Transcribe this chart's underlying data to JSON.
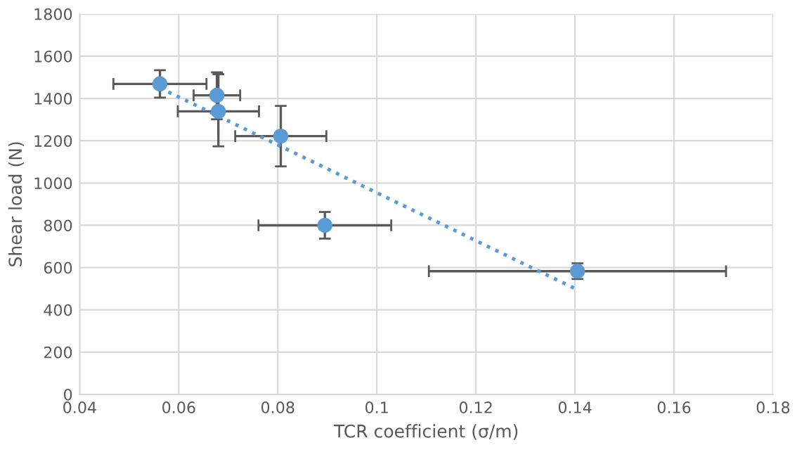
{
  "chart_data": {
    "type": "scatter",
    "xlabel": "TCR coefficient (σ/m)",
    "ylabel": "Shear load (N)",
    "xlim": [
      0.04,
      0.18
    ],
    "xticks": [
      0.04,
      0.06,
      0.08,
      0.1,
      0.12,
      0.14,
      0.16,
      0.18
    ],
    "ylim": [
      0,
      1800
    ],
    "yticks": [
      0,
      200,
      400,
      600,
      800,
      1000,
      1200,
      1400,
      1600,
      1800
    ],
    "grid": true,
    "legend": false,
    "series": [
      {
        "color": "#5b9bd5",
        "marker": "circle",
        "x": [
          0.0562,
          0.0677,
          0.068,
          0.0806,
          0.0895,
          0.1405
        ],
        "values": [
          1469,
          1415,
          1339,
          1222,
          800,
          583
        ],
        "errors": [
          65,
          [
            1302,
            1524
          ],
          [
            1174,
            1515
          ],
          143,
          63,
          37
        ],
        "xerrors": [
          0.0094,
          0.0047,
          0.0082,
          0.0092,
          0.0134,
          0.03
        ]
      },
      {
        "type": "line",
        "color": "#5b9bd5",
        "line_style": "dotted",
        "marker": "none",
        "x": [
          0.0562,
          0.1405
        ],
        "values": [
          1450,
          495
        ]
      }
    ]
  }
}
